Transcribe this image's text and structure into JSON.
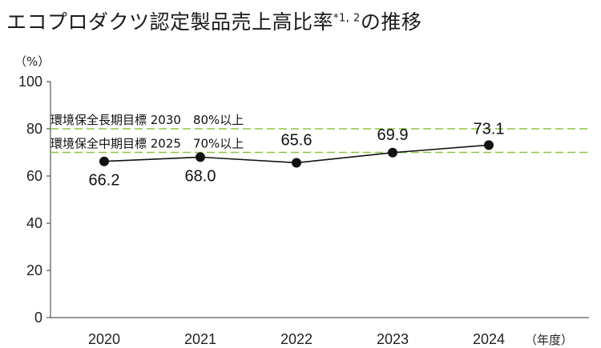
{
  "title": {
    "main": "エコプロダクツ認定製品売上高比率",
    "notes": "*1, 2",
    "suffix": "の推移"
  },
  "chart_data": {
    "type": "line",
    "x_unit": "（年度）",
    "y_unit": "（%）",
    "categories": [
      "2020",
      "2021",
      "2022",
      "2023",
      "2024"
    ],
    "values": [
      66.2,
      68.0,
      65.6,
      69.9,
      73.1
    ],
    "value_labels": [
      "66.2",
      "68.0",
      "65.6",
      "69.9",
      "73.1"
    ],
    "ylim": [
      0,
      100
    ],
    "yticks": [
      "0",
      "20",
      "40",
      "60",
      "80",
      "100"
    ],
    "grid": "y-axis baseline only",
    "series_color": "#111111",
    "target_color": "#8cc63f",
    "targets": [
      {
        "label": "環境保全長期目標 2030　80%以上",
        "value": 80
      },
      {
        "label": "環境保全中期目標 2025　70%以上",
        "value": 70
      }
    ]
  }
}
